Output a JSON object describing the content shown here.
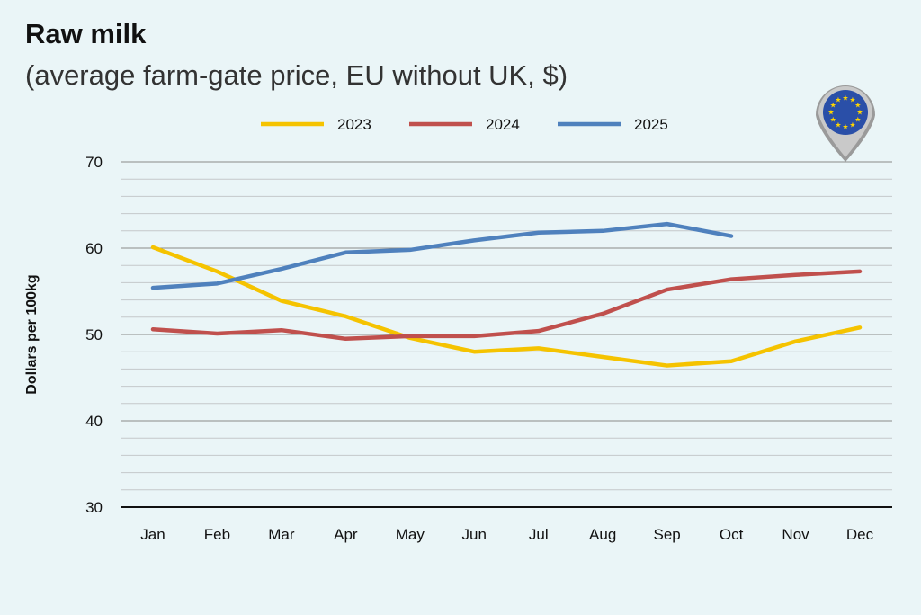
{
  "header": {
    "title": "Raw milk",
    "subtitle": "(average farm-gate price, EU without UK, $)"
  },
  "badge": {
    "icon": "eu-flag-map-pin-icon"
  },
  "chart_data": {
    "type": "line",
    "title": "Raw milk",
    "subtitle": "(average farm-gate price, EU without UK, $)",
    "xlabel": "",
    "ylabel": "Dollars per 100kg",
    "categories": [
      "Jan",
      "Feb",
      "Mar",
      "Apr",
      "May",
      "Jun",
      "Jul",
      "Aug",
      "Sep",
      "Oct",
      "Nov",
      "Dec"
    ],
    "ylim": [
      30,
      70
    ],
    "yticks": [
      30,
      40,
      50,
      60,
      70
    ],
    "grid": true,
    "legend": "top",
    "series": [
      {
        "name": "2023",
        "color": "#f5c300",
        "values": [
          60.1,
          57.3,
          53.9,
          52.1,
          49.6,
          48.0,
          48.4,
          47.4,
          46.4,
          46.9,
          49.2,
          50.8
        ]
      },
      {
        "name": "2024",
        "color": "#c0504d",
        "values": [
          50.6,
          50.1,
          50.5,
          49.5,
          49.8,
          49.8,
          50.4,
          52.4,
          55.2,
          56.4,
          56.9,
          57.3
        ]
      },
      {
        "name": "2025",
        "color": "#4f81bd",
        "values": [
          55.4,
          55.9,
          57.6,
          59.5,
          59.8,
          60.9,
          61.8,
          62.0,
          62.8,
          61.4,
          null,
          null
        ]
      }
    ]
  }
}
